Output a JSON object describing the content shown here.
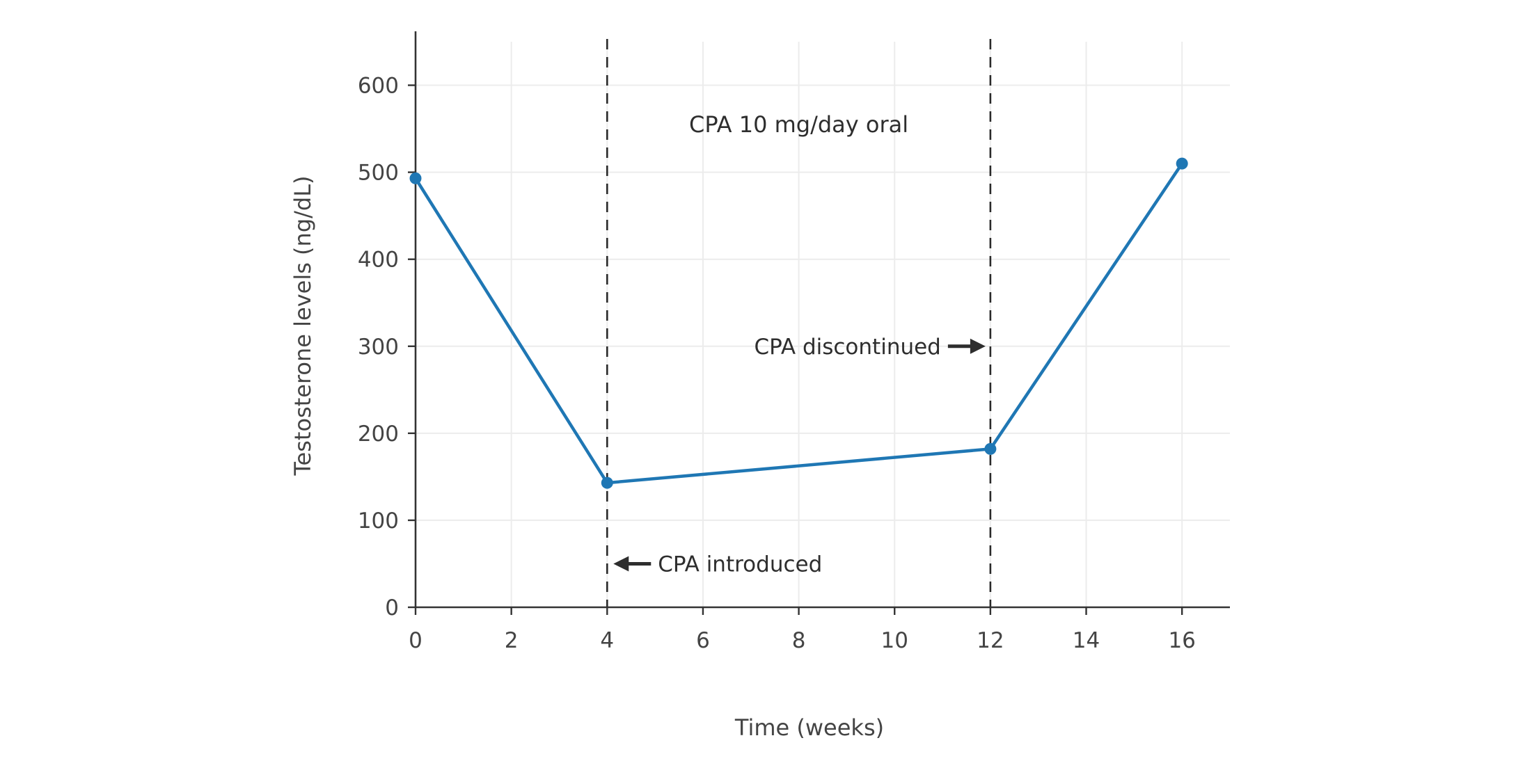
{
  "chart_data": {
    "type": "line",
    "title": "",
    "xlabel": "Time (weeks)",
    "ylabel": "Testosterone levels (ng/dL)",
    "x": [
      0,
      4,
      12,
      16
    ],
    "y": [
      493,
      143,
      182,
      510
    ],
    "xlim": [
      0,
      17
    ],
    "ylim": [
      0,
      650
    ],
    "x_ticks": [
      0,
      2,
      4,
      6,
      8,
      10,
      12,
      14,
      16
    ],
    "y_ticks": [
      0,
      100,
      200,
      300,
      400,
      500,
      600
    ],
    "grid": true,
    "legend": "none",
    "line_color": "#1f77b4",
    "marker_color": "#1f77b4",
    "axis_color": "#333333",
    "grid_color": "#ececec",
    "tick_text_color": "#444444",
    "annotation_color": "#2e2e2e",
    "vlines": [
      {
        "x": 4,
        "style": "dashed",
        "color": "#2a2a2a"
      },
      {
        "x": 12,
        "style": "dashed",
        "color": "#2a2a2a"
      }
    ],
    "annotations": [
      {
        "text": "CPA 10 mg/day oral",
        "x": 8,
        "y": 555,
        "arrow": "none"
      },
      {
        "text": "CPA discontinued",
        "x": 12,
        "y": 300,
        "arrow": "right"
      },
      {
        "text": "CPA introduced",
        "x": 4,
        "y": 50,
        "arrow": "left"
      }
    ]
  }
}
